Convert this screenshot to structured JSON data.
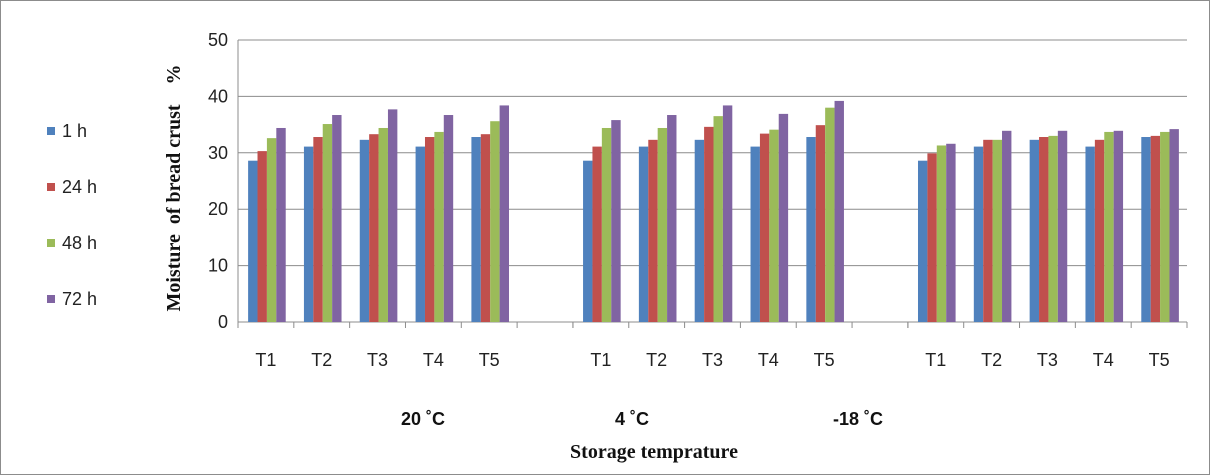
{
  "chart_data": {
    "type": "bar",
    "ylabel": "Moisture  of bread crust    %",
    "xlabel": "Storage temprature",
    "ylim": [
      0,
      50
    ],
    "yticks": [
      "0",
      "10",
      "20",
      "30",
      "40",
      "50"
    ],
    "grid": true,
    "legend_position": "left",
    "groups": [
      {
        "label": "20 ˚C",
        "categories": [
          "T1",
          "T2",
          "T3",
          "T4",
          "T5"
        ]
      },
      {
        "label": "4 ˚C",
        "categories": [
          "T1",
          "T2",
          "T3",
          "T4",
          "T5"
        ]
      },
      {
        "label": "-18 ˚C",
        "categories": [
          "T1",
          "T2",
          "T3",
          "T4",
          "T5"
        ]
      }
    ],
    "series": [
      {
        "name": "1 h",
        "color": "#4F81BD",
        "values": [
          28.6,
          31.1,
          32.3,
          31.1,
          32.8,
          28.6,
          31.1,
          32.3,
          31.1,
          32.8,
          28.6,
          31.1,
          32.3,
          31.1,
          32.8
        ]
      },
      {
        "name": "24 h",
        "color": "#C0504D",
        "values": [
          30.3,
          32.8,
          33.3,
          32.8,
          33.3,
          31.1,
          32.3,
          34.6,
          33.4,
          34.9,
          29.9,
          32.3,
          32.8,
          32.3,
          33.0
        ]
      },
      {
        "name": "48 h",
        "color": "#9BBB59",
        "values": [
          32.6,
          35.1,
          34.4,
          33.7,
          35.6,
          34.4,
          34.4,
          36.5,
          34.1,
          38.0,
          31.3,
          32.3,
          33.0,
          33.7,
          33.7
        ]
      },
      {
        "name": "72 h",
        "color": "#8064A2",
        "values": [
          34.4,
          36.7,
          37.7,
          36.7,
          38.4,
          35.8,
          36.7,
          38.4,
          36.9,
          39.2,
          31.6,
          33.9,
          33.9,
          33.9,
          34.2
        ]
      }
    ]
  }
}
